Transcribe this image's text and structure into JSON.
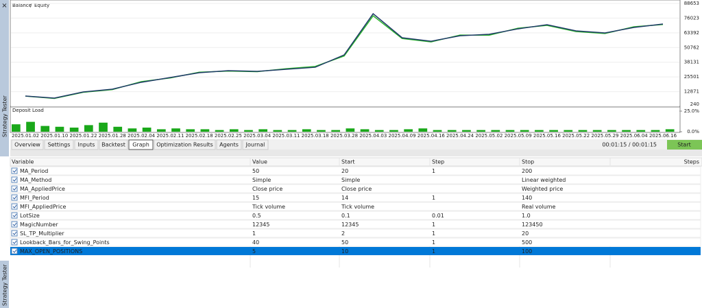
{
  "sidebar": {
    "close": "×",
    "title": "Strategy Tester",
    "title_lower": "Strategy Tester"
  },
  "chart_data": [
    {
      "type": "line",
      "legend": {
        "balance": "Balance",
        "separator": "/",
        "equity": "Equity"
      },
      "categories": [
        "2025.01.02",
        "2025.01.10",
        "2025.01.22",
        "2025.01.28",
        "2025.02.04",
        "2025.02.11",
        "2025.02.18",
        "2025.02.25",
        "2025.03.04",
        "2025.03.11",
        "2025.03.18",
        "2025.03.28",
        "2025.04.03",
        "2025.04.09",
        "2025.04.16",
        "2025.04.24",
        "2025.05.02",
        "2025.05.09",
        "2025.05.16",
        "2025.05.22",
        "2025.05.29",
        "2025.06.04",
        "2025.06.16"
      ],
      "series": [
        {
          "name": "Balance",
          "color": "#1f3a68",
          "values": [
            9100,
            7300,
            12600,
            15000,
            20900,
            25000,
            29100,
            30900,
            30300,
            32100,
            33800,
            44400,
            79800,
            59200,
            56200,
            60900,
            62100,
            66800,
            70400,
            65100,
            63300,
            68000,
            71000
          ]
        },
        {
          "name": "Equity",
          "color": "#2bb52b",
          "values": [
            9000,
            7000,
            12300,
            14600,
            21500,
            24600,
            29600,
            30500,
            30000,
            32600,
            34500,
            43500,
            78000,
            58500,
            55600,
            61500,
            61300,
            67400,
            69800,
            64500,
            62800,
            68600,
            70500
          ]
        }
      ],
      "ylim": [
        240,
        88653
      ],
      "yticks": [
        88653,
        76023,
        63392,
        50762,
        38131,
        25501,
        12871,
        240
      ],
      "grid": true
    },
    {
      "type": "bar",
      "title": "Deposit Load",
      "color": "#1aa81a",
      "values": [
        9,
        12,
        7,
        6,
        5,
        8,
        11,
        6,
        4,
        5,
        3,
        4,
        3,
        3,
        2,
        3,
        2,
        3,
        2,
        2,
        3,
        2,
        2,
        4,
        3,
        2,
        2,
        3,
        4,
        2,
        2,
        2,
        2,
        2,
        2,
        2,
        2,
        2,
        2,
        2,
        2,
        2,
        2,
        2,
        2,
        3
      ],
      "ylim": [
        0,
        25
      ],
      "yticks": [
        {
          "value": 25,
          "label": "25.0%"
        },
        {
          "value": 0,
          "label": "0.0%"
        }
      ]
    }
  ],
  "tabs": [
    "Overview",
    "Settings",
    "Inputs",
    "Backtest",
    "Graph",
    "Optimization Results",
    "Agents",
    "Journal"
  ],
  "active_tab": "Graph",
  "timer": "00:01:15 / 00:01:15",
  "start_button": "Start",
  "table": {
    "columns": [
      "Variable",
      "Value",
      "Start",
      "Step",
      "Stop",
      "Steps"
    ],
    "rows": [
      {
        "variable": "MA_Period",
        "value": "50",
        "start": "20",
        "step": "1",
        "stop": "200"
      },
      {
        "variable": "MA_Method",
        "value": "Simple",
        "start": "Simple",
        "stop": "Linear weighted"
      },
      {
        "variable": "MA_AppliedPrice",
        "value": "Close price",
        "start": "Close price",
        "stop": "Weighted price"
      },
      {
        "variable": "MFI_Period",
        "value": "15",
        "start": "14",
        "step": "1",
        "stop": "140"
      },
      {
        "variable": "MFI_AppliedPrice",
        "value": "Tick volume",
        "start": "Tick volume",
        "stop": "Real volume"
      },
      {
        "variable": "LotSize",
        "value": "0.5",
        "start": "0.1",
        "step": "0.01",
        "stop": "1.0"
      },
      {
        "variable": "MagicNumber",
        "value": "12345",
        "start": "12345",
        "step": "1",
        "stop": "123450"
      },
      {
        "variable": "SL_TP_Multiplier",
        "value": "1",
        "start": "2",
        "step": "1",
        "stop": "20"
      },
      {
        "variable": "Lookback_Bars_for_Swing_Points",
        "value": "40",
        "start": "50",
        "step": "1",
        "stop": "500"
      },
      {
        "variable": "MAX_OPEN_POSITIONS",
        "value": "5",
        "start": "10",
        "step": "1",
        "stop": "100"
      }
    ],
    "selected_row": 9
  }
}
